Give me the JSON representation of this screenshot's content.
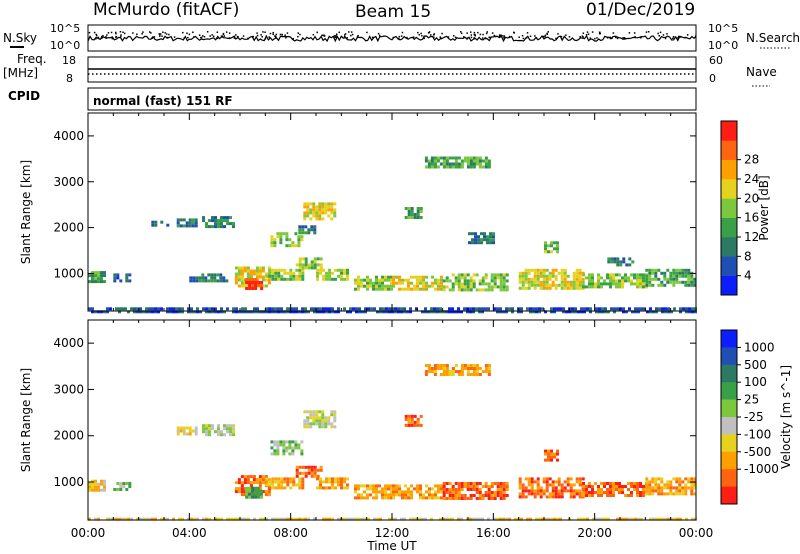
{
  "header": {
    "title_left": "McMurdo (fitACF)",
    "title_center": "Beam 15",
    "title_right": "01/Dec/2019"
  },
  "noise_panel": {
    "left_label": "N.Sky",
    "right_label": "N.Search",
    "left_ticks": [
      "10^5",
      "10^0"
    ],
    "right_ticks": [
      "10^5",
      "10^0"
    ]
  },
  "freq_panel": {
    "left_label_top": "Freq.",
    "left_label_bottom": "[MHz]",
    "right_label": "Nave",
    "left_ticks": [
      "18",
      "8"
    ],
    "right_ticks": [
      "60",
      "0"
    ]
  },
  "cpid_panel": {
    "label": "CPID",
    "text": "normal (fast) 151 RF"
  },
  "time_axis": {
    "label": "Time UT",
    "ticks": [
      "00:00",
      "04:00",
      "08:00",
      "12:00",
      "16:00",
      "20:00",
      "00:00"
    ]
  },
  "chart_data": [
    {
      "type": "heatmap",
      "title": "",
      "xlabel": "Time UT",
      "ylabel": "Slant Range [km]",
      "x_range_hours": [
        0,
        24
      ],
      "ylim": [
        180,
        4500
      ],
      "y_ticks": [
        "1000",
        "2000",
        "3000",
        "4000"
      ],
      "colorbar": {
        "label": "Power [dB]",
        "ticks": [
          "4",
          "8",
          "12",
          "16",
          "20",
          "24",
          "28"
        ],
        "colors": [
          "#0a1eff",
          "#1f4fb4",
          "#2a7a64",
          "#3aa048",
          "#7cc83c",
          "#e6d21e",
          "#ffa000",
          "#ff6410",
          "#ff1e14"
        ]
      },
      "regions": [
        {
          "t0": 0.0,
          "t1": 0.6,
          "r0": 850,
          "r1": 1050,
          "v": 3
        },
        {
          "t0": 1.0,
          "t1": 1.6,
          "r0": 850,
          "r1": 1000,
          "v": 1
        },
        {
          "t0": 2.5,
          "t1": 3.2,
          "r0": 2050,
          "r1": 2150,
          "v": 1
        },
        {
          "t0": 3.5,
          "t1": 4.3,
          "r0": 2050,
          "r1": 2200,
          "v": 2
        },
        {
          "t0": 4.5,
          "t1": 5.7,
          "r0": 2050,
          "r1": 2250,
          "v": 2
        },
        {
          "t0": 4.0,
          "t1": 5.5,
          "r0": 850,
          "r1": 1000,
          "v": 2
        },
        {
          "t0": 5.8,
          "t1": 7.2,
          "r0": 700,
          "r1": 1150,
          "v": 5
        },
        {
          "t0": 6.2,
          "t1": 6.9,
          "r0": 650,
          "r1": 900,
          "v": 8
        },
        {
          "t0": 7.0,
          "t1": 8.5,
          "r0": 850,
          "r1": 1100,
          "v": 4
        },
        {
          "t0": 7.2,
          "t1": 8.4,
          "r0": 1600,
          "r1": 1900,
          "v": 4
        },
        {
          "t0": 8.2,
          "t1": 9.2,
          "r0": 1100,
          "r1": 1350,
          "v": 4
        },
        {
          "t0": 8.5,
          "t1": 9.8,
          "r0": 2200,
          "r1": 2550,
          "v": 5
        },
        {
          "t0": 9.0,
          "t1": 10.2,
          "r0": 850,
          "r1": 1100,
          "v": 4
        },
        {
          "t0": 8.3,
          "t1": 9.0,
          "r0": 1900,
          "r1": 2050,
          "v": 2
        },
        {
          "t0": 10.5,
          "t1": 12.0,
          "r0": 650,
          "r1": 950,
          "v": 4
        },
        {
          "t0": 12.0,
          "t1": 14.0,
          "r0": 650,
          "r1": 950,
          "v": 5
        },
        {
          "t0": 14.0,
          "t1": 16.5,
          "r0": 650,
          "r1": 1000,
          "v": 4
        },
        {
          "t0": 12.5,
          "t1": 13.2,
          "r0": 2200,
          "r1": 2450,
          "v": 3
        },
        {
          "t0": 13.3,
          "t1": 15.8,
          "r0": 3350,
          "r1": 3550,
          "v": 3
        },
        {
          "t0": 15.0,
          "t1": 16.0,
          "r0": 1700,
          "r1": 1900,
          "v": 2
        },
        {
          "t0": 17.0,
          "t1": 19.5,
          "r0": 700,
          "r1": 1100,
          "v": 5
        },
        {
          "t0": 18.0,
          "t1": 18.5,
          "r0": 1500,
          "r1": 1700,
          "v": 4
        },
        {
          "t0": 19.5,
          "t1": 22.0,
          "r0": 700,
          "r1": 1000,
          "v": 4
        },
        {
          "t0": 22.0,
          "t1": 24.0,
          "r0": 750,
          "r1": 1100,
          "v": 3
        },
        {
          "t0": 20.5,
          "t1": 21.5,
          "r0": 1200,
          "r1": 1350,
          "v": 2
        },
        {
          "t0": 0.0,
          "t1": 24.0,
          "r0": 180,
          "r1": 260,
          "v": 1
        }
      ]
    },
    {
      "type": "heatmap",
      "title": "",
      "xlabel": "Time UT",
      "ylabel": "Slant Range [km]",
      "x_range_hours": [
        0,
        24
      ],
      "ylim": [
        180,
        4500
      ],
      "y_ticks": [
        "1000",
        "2000",
        "3000",
        "4000"
      ],
      "colorbar": {
        "label": "Velocity [m s^-1]",
        "ticks": [
          "1000",
          "500",
          "100",
          "25",
          "-25",
          "-100",
          "-500",
          "-1000"
        ],
        "colors": [
          "#0a1eff",
          "#1f4fb4",
          "#2a7a64",
          "#3aa048",
          "#7cc83c",
          "#c0c0c0",
          "#e6d21e",
          "#ffa000",
          "#ff6410",
          "#ff1e14"
        ]
      },
      "regions": [
        {
          "t0": 0.0,
          "t1": 0.6,
          "r0": 850,
          "r1": 1050,
          "v": 6
        },
        {
          "t0": 1.0,
          "t1": 1.6,
          "r0": 850,
          "r1": 1000,
          "v": 4
        },
        {
          "t0": 3.5,
          "t1": 4.3,
          "r0": 2050,
          "r1": 2200,
          "v": 6
        },
        {
          "t0": 4.5,
          "t1": 5.7,
          "r0": 2050,
          "r1": 2250,
          "v": 5
        },
        {
          "t0": 5.8,
          "t1": 7.2,
          "r0": 700,
          "r1": 1150,
          "v": 8
        },
        {
          "t0": 6.2,
          "t1": 6.9,
          "r0": 650,
          "r1": 900,
          "v": 3
        },
        {
          "t0": 7.0,
          "t1": 8.5,
          "r0": 850,
          "r1": 1100,
          "v": 7
        },
        {
          "t0": 7.2,
          "t1": 8.4,
          "r0": 1600,
          "r1": 1900,
          "v": 4
        },
        {
          "t0": 8.2,
          "t1": 9.2,
          "r0": 1100,
          "r1": 1350,
          "v": 8
        },
        {
          "t0": 8.5,
          "t1": 9.8,
          "r0": 2200,
          "r1": 2550,
          "v": 5
        },
        {
          "t0": 9.0,
          "t1": 10.2,
          "r0": 850,
          "r1": 1100,
          "v": 7
        },
        {
          "t0": 10.5,
          "t1": 12.0,
          "r0": 650,
          "r1": 950,
          "v": 7
        },
        {
          "t0": 12.0,
          "t1": 14.0,
          "r0": 650,
          "r1": 950,
          "v": 7
        },
        {
          "t0": 14.0,
          "t1": 16.5,
          "r0": 650,
          "r1": 1000,
          "v": 8
        },
        {
          "t0": 12.5,
          "t1": 13.2,
          "r0": 2200,
          "r1": 2450,
          "v": 8
        },
        {
          "t0": 13.3,
          "t1": 15.8,
          "r0": 3350,
          "r1": 3550,
          "v": 7
        },
        {
          "t0": 17.0,
          "t1": 19.5,
          "r0": 700,
          "r1": 1100,
          "v": 8
        },
        {
          "t0": 18.0,
          "t1": 18.5,
          "r0": 1500,
          "r1": 1700,
          "v": 8
        },
        {
          "t0": 19.5,
          "t1": 22.0,
          "r0": 700,
          "r1": 1000,
          "v": 8
        },
        {
          "t0": 22.0,
          "t1": 24.0,
          "r0": 750,
          "r1": 1100,
          "v": 7
        },
        {
          "t0": 0.0,
          "t1": 24.0,
          "r0": 180,
          "r1": 230,
          "v": 6
        }
      ]
    }
  ]
}
